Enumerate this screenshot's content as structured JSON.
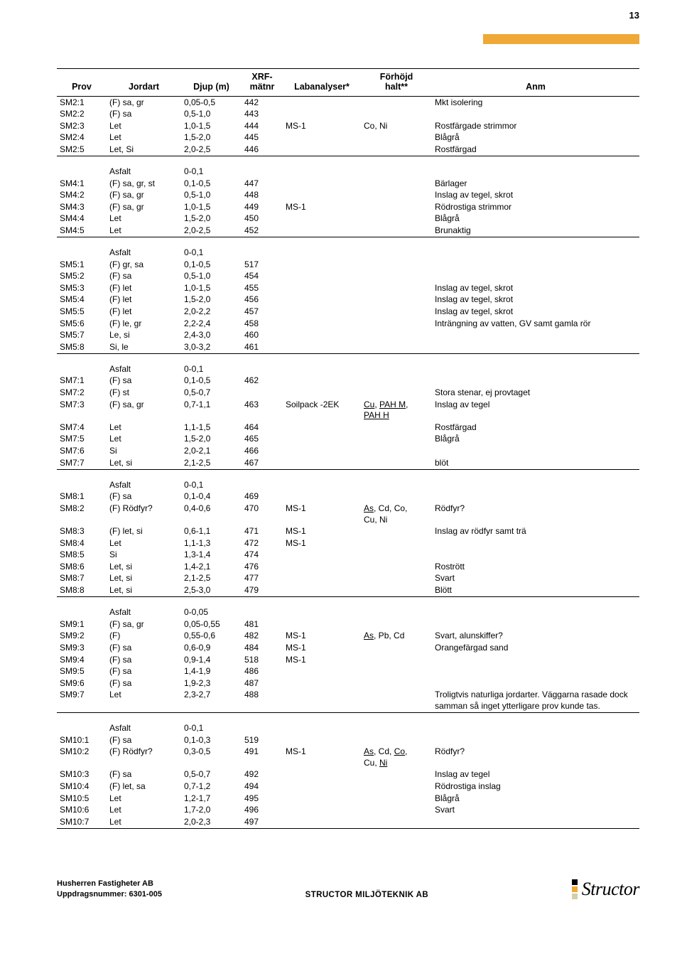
{
  "page_number": "13",
  "accent_color": "#f0a836",
  "table": {
    "headers": {
      "prov": "Prov",
      "jordart": "Jordart",
      "djup": "Djup (m)",
      "xrf": "XRF-\nmätnr",
      "lab": "Labanalyser*",
      "halt": "Förhöjd\nhalt**",
      "anm": "Anm"
    },
    "groups": [
      {
        "rows": [
          {
            "prov": "SM2:1",
            "jord": "(F) sa, gr",
            "djup": "0,05-0,5",
            "xrf": "442",
            "lab": "",
            "halt": "",
            "anm": "Mkt isolering"
          },
          {
            "prov": "SM2:2",
            "jord": "(F) sa",
            "djup": "0,5-1,0",
            "xrf": "443",
            "lab": "",
            "halt": "",
            "anm": ""
          },
          {
            "prov": "SM2:3",
            "jord": "Let",
            "djup": "1,0-1,5",
            "xrf": "444",
            "lab": "MS-1",
            "halt": "Co, Ni",
            "anm": "Rostfärgade strimmor"
          },
          {
            "prov": "SM2:4",
            "jord": "Let",
            "djup": "1,5-2,0",
            "xrf": "445",
            "lab": "",
            "halt": "",
            "anm": "Blågrå"
          },
          {
            "prov": "SM2:5",
            "jord": "Let, Si",
            "djup": "2,0-2,5",
            "xrf": "446",
            "lab": "",
            "halt": "",
            "anm": "Rostfärgad"
          }
        ]
      },
      {
        "rows": [
          {
            "prov": "",
            "jord": "Asfalt",
            "djup": "0-0,1",
            "xrf": "",
            "lab": "",
            "halt": "",
            "anm": ""
          },
          {
            "prov": "SM4:1",
            "jord": "(F) sa, gr, st",
            "djup": "0,1-0,5",
            "xrf": "447",
            "lab": "",
            "halt": "",
            "anm": "Bärlager"
          },
          {
            "prov": "SM4:2",
            "jord": "(F) sa, gr",
            "djup": "0,5-1,0",
            "xrf": "448",
            "lab": "",
            "halt": "",
            "anm": "Inslag av tegel, skrot"
          },
          {
            "prov": "SM4:3",
            "jord": "(F) sa, gr",
            "djup": "1,0-1,5",
            "xrf": "449",
            "lab": "MS-1",
            "halt": "",
            "anm": "Rödrostiga strimmor"
          },
          {
            "prov": "SM4:4",
            "jord": "Let",
            "djup": "1,5-2,0",
            "xrf": "450",
            "lab": "",
            "halt": "",
            "anm": "Blågrå"
          },
          {
            "prov": "SM4:5",
            "jord": "Let",
            "djup": "2,0-2,5",
            "xrf": "452",
            "lab": "",
            "halt": "",
            "anm": "Brunaktig"
          }
        ]
      },
      {
        "rows": [
          {
            "prov": "",
            "jord": "Asfalt",
            "djup": "0-0,1",
            "xrf": "",
            "lab": "",
            "halt": "",
            "anm": ""
          },
          {
            "prov": "SM5:1",
            "jord": "(F) gr, sa",
            "djup": "0,1-0,5",
            "xrf": "517",
            "lab": "",
            "halt": "",
            "anm": ""
          },
          {
            "prov": "SM5:2",
            "jord": "(F) sa",
            "djup": "0,5-1,0",
            "xrf": "454",
            "lab": "",
            "halt": "",
            "anm": ""
          },
          {
            "prov": "SM5:3",
            "jord": "(F) let",
            "djup": "1,0-1,5",
            "xrf": "455",
            "lab": "",
            "halt": "",
            "anm": "Inslag av tegel, skrot"
          },
          {
            "prov": "SM5:4",
            "jord": "(F) let",
            "djup": "1,5-2,0",
            "xrf": "456",
            "lab": "",
            "halt": "",
            "anm": "Inslag av tegel, skrot"
          },
          {
            "prov": "SM5:5",
            "jord": "(F) let",
            "djup": "2,0-2,2",
            "xrf": "457",
            "lab": "",
            "halt": "",
            "anm": "Inslag av tegel, skrot"
          },
          {
            "prov": "SM5:6",
            "jord": "(F) le, gr",
            "djup": "2,2-2,4",
            "xrf": "458",
            "lab": "",
            "halt": "",
            "anm": "Inträngning av vatten, GV samt gamla rör"
          },
          {
            "prov": "SM5:7",
            "jord": "Le, si",
            "djup": "2,4-3,0",
            "xrf": "460",
            "lab": "",
            "halt": "",
            "anm": ""
          },
          {
            "prov": "SM5:8",
            "jord": "Si, le",
            "djup": "3,0-3,2",
            "xrf": "461",
            "lab": "",
            "halt": "",
            "anm": ""
          }
        ]
      },
      {
        "rows": [
          {
            "prov": "",
            "jord": "Asfalt",
            "djup": "0-0,1",
            "xrf": "",
            "lab": "",
            "halt": "",
            "anm": ""
          },
          {
            "prov": "SM7:1",
            "jord": "(F) sa",
            "djup": "0,1-0,5",
            "xrf": "462",
            "lab": "",
            "halt": "",
            "anm": ""
          },
          {
            "prov": "SM7:2",
            "jord": "(F) st",
            "djup": "0,5-0,7",
            "xrf": "",
            "lab": "",
            "halt": "",
            "anm": "Stora stenar, ej provtaget"
          },
          {
            "prov": "SM7:3",
            "jord": "(F) sa, gr",
            "djup": "0,7-1,1",
            "xrf": "463",
            "lab": "Soilpack -2EK",
            "halt": "<span class=\"u\">Cu</span>, <span class=\"u\">PAH M</span>,<br><span class=\"u\">PAH H</span>",
            "anm": "Inslag av tegel"
          },
          {
            "prov": "SM7:4",
            "jord": "Let",
            "djup": "1,1-1,5",
            "xrf": "464",
            "lab": "",
            "halt": "",
            "anm": "Rostfärgad"
          },
          {
            "prov": "SM7:5",
            "jord": "Let",
            "djup": "1,5-2,0",
            "xrf": "465",
            "lab": "",
            "halt": "",
            "anm": "Blågrå"
          },
          {
            "prov": "SM7:6",
            "jord": "Si",
            "djup": "2,0-2,1",
            "xrf": "466",
            "lab": "",
            "halt": "",
            "anm": ""
          },
          {
            "prov": "SM7:7",
            "jord": "Let, si",
            "djup": "2,1-2,5",
            "xrf": "467",
            "lab": "",
            "halt": "",
            "anm": "blöt"
          }
        ]
      },
      {
        "rows": [
          {
            "prov": "",
            "jord": "Asfalt",
            "djup": "0-0,1",
            "xrf": "",
            "lab": "",
            "halt": "",
            "anm": ""
          },
          {
            "prov": "SM8:1",
            "jord": "(F) sa",
            "djup": "0,1-0,4",
            "xrf": "469",
            "lab": "",
            "halt": "",
            "anm": ""
          },
          {
            "prov": "SM8:2",
            "jord": "(F) Rödfyr?",
            "djup": "0,4-0,6",
            "xrf": "470",
            "lab": "MS-1",
            "halt": "<span class=\"u\">As</span>, Cd, Co,<br>Cu, Ni",
            "anm": "Rödfyr?"
          },
          {
            "prov": "SM8:3",
            "jord": "(F) let, si",
            "djup": "0,6-1,1",
            "xrf": "471",
            "lab": "MS-1",
            "halt": "",
            "anm": "Inslag av rödfyr samt trä"
          },
          {
            "prov": "SM8:4",
            "jord": "Let",
            "djup": "1,1-1,3",
            "xrf": "472",
            "lab": "MS-1",
            "halt": "",
            "anm": ""
          },
          {
            "prov": "SM8:5",
            "jord": "Si",
            "djup": "1,3-1,4",
            "xrf": "474",
            "lab": "",
            "halt": "",
            "anm": ""
          },
          {
            "prov": "SM8:6",
            "jord": "Let, si",
            "djup": "1,4-2,1",
            "xrf": "476",
            "lab": "",
            "halt": "",
            "anm": "Rostrött"
          },
          {
            "prov": "SM8:7",
            "jord": "Let, si",
            "djup": "2,1-2,5",
            "xrf": "477",
            "lab": "",
            "halt": "",
            "anm": "Svart"
          },
          {
            "prov": "SM8:8",
            "jord": "Let, si",
            "djup": "2,5-3,0",
            "xrf": "479",
            "lab": "",
            "halt": "",
            "anm": "Blött"
          }
        ]
      },
      {
        "rows": [
          {
            "prov": "",
            "jord": "Asfalt",
            "djup": "0-0,05",
            "xrf": "",
            "lab": "",
            "halt": "",
            "anm": ""
          },
          {
            "prov": "SM9:1",
            "jord": "(F) sa, gr",
            "djup": "0,05-0,55",
            "xrf": "481",
            "lab": "",
            "halt": "",
            "anm": ""
          },
          {
            "prov": "SM9:2",
            "jord": "(F)",
            "djup": "0,55-0,6",
            "xrf": "482",
            "lab": "MS-1",
            "halt": "<span class=\"u\">As</span>, Pb, Cd",
            "anm": "Svart, alunskiffer?"
          },
          {
            "prov": "SM9:3",
            "jord": "(F) sa",
            "djup": "0,6-0,9",
            "xrf": "484",
            "lab": "MS-1",
            "halt": "",
            "anm": "Orangefärgad sand"
          },
          {
            "prov": "SM9:4",
            "jord": "(F) sa",
            "djup": "0,9-1,4",
            "xrf": "518",
            "lab": "MS-1",
            "halt": "",
            "anm": ""
          },
          {
            "prov": "SM9:5",
            "jord": "(F) sa",
            "djup": "1,4-1,9",
            "xrf": "486",
            "lab": "",
            "halt": "",
            "anm": ""
          },
          {
            "prov": "SM9:6",
            "jord": "(F) sa",
            "djup": "1,9-2,3",
            "xrf": "487",
            "lab": "",
            "halt": "",
            "anm": ""
          },
          {
            "prov": "SM9:7",
            "jord": "Let",
            "djup": "2,3-2,7",
            "xrf": "488",
            "lab": "",
            "halt": "",
            "anm": "Troligtvis naturliga jordarter. Väggarna rasade dock samman så inget ytterligare prov kunde tas."
          }
        ]
      },
      {
        "rows": [
          {
            "prov": "",
            "jord": "Asfalt",
            "djup": "0-0,1",
            "xrf": "",
            "lab": "",
            "halt": "",
            "anm": ""
          },
          {
            "prov": "SM10:1",
            "jord": "(F) sa",
            "djup": "0,1-0,3",
            "xrf": "519",
            "lab": "",
            "halt": "",
            "anm": ""
          },
          {
            "prov": "SM10:2",
            "jord": "(F) Rödfyr?",
            "djup": "0,3-0,5",
            "xrf": "491",
            "lab": "MS-1",
            "halt": "<span class=\"u\">As</span>, Cd, <span class=\"u\">Co</span>,<br>Cu, <span class=\"u\">Ni</span>",
            "anm": "Rödfyr?"
          },
          {
            "prov": "SM10:3",
            "jord": "(F) sa",
            "djup": "0,5-0,7",
            "xrf": "492",
            "lab": "",
            "halt": "",
            "anm": "Inslag av tegel"
          },
          {
            "prov": "SM10:4",
            "jord": "(F) let, sa",
            "djup": "0,7-1,2",
            "xrf": "494",
            "lab": "",
            "halt": "",
            "anm": "Rödrostiga inslag"
          },
          {
            "prov": "SM10:5",
            "jord": "Let",
            "djup": "1,2-1,7",
            "xrf": "495",
            "lab": "",
            "halt": "",
            "anm": "Blågrå"
          },
          {
            "prov": "SM10:6",
            "jord": "Let",
            "djup": "1,7-2,0",
            "xrf": "496",
            "lab": "",
            "halt": "",
            "anm": "Svart"
          },
          {
            "prov": "SM10:7",
            "jord": "Let",
            "djup": "2,0-2,3",
            "xrf": "497",
            "lab": "",
            "halt": "",
            "anm": ""
          }
        ]
      }
    ]
  },
  "footer": {
    "left_line1": "Husherren Fastigheter AB",
    "left_line2": "Uppdragsnummer: 6301-005",
    "center": "STRUCTOR MILJÖTEKNIK AB",
    "logo_text": "Structor",
    "logo_colors": [
      "#000000",
      "#f0a836",
      "#d4cfa6"
    ]
  }
}
